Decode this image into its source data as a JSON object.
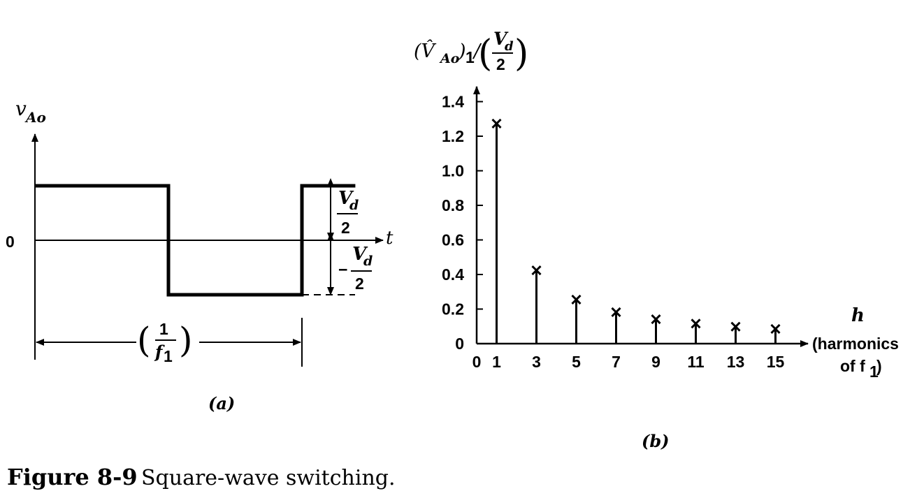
{
  "figure": {
    "number_label": "Figure 8-9",
    "caption": "Square-wave switching."
  },
  "panel_a": {
    "label": "(a)",
    "y_axis_label": "v",
    "y_axis_subscript": "Ao",
    "x_axis_label": "t",
    "zero_label": "0",
    "upper_level_num": "V",
    "upper_level_num_sub": "d",
    "upper_level_den": "2",
    "lower_level_sign": "−",
    "lower_level_num": "V",
    "lower_level_num_sub": "d",
    "lower_level_den": "2",
    "period_open": "(",
    "period_close": ")",
    "period_num": "1",
    "period_den": "f",
    "period_den_sub": "1"
  },
  "panel_b": {
    "label": "(b)",
    "y_axis_label_lhs": "(V̂",
    "y_axis_label_lhs_sub": "Ao",
    "y_axis_label_mid": ")",
    "y_axis_label_mid_sub": "1",
    "y_axis_label_div": "/",
    "y_axis_label_rhs_open": "(",
    "y_axis_label_rhs_num": "V",
    "y_axis_label_rhs_num_sub": "d",
    "y_axis_label_rhs_den": "2",
    "y_axis_label_rhs_close": ")",
    "x_axis_label_h": "h",
    "x_axis_label_line1": "(harmonics",
    "x_axis_label_line2": "of f",
    "x_axis_label_line2_sub": "1",
    "x_axis_label_close": ")"
  },
  "chart_data": [
    {
      "type": "line",
      "panel": "a",
      "x": [
        0,
        0.5,
        0.5,
        1.0,
        1.0,
        1.2
      ],
      "y": [
        1,
        1,
        -1,
        -1,
        1,
        1
      ],
      "xlabel": "t",
      "ylabel": "vAo",
      "grid": false,
      "color": "#000000"
    },
    {
      "type": "scatter",
      "panel": "b",
      "x": [
        1,
        3,
        5,
        7,
        9,
        11,
        13,
        15
      ],
      "y": [
        1.273,
        0.424,
        0.255,
        0.182,
        0.141,
        0.116,
        0.098,
        0.085
      ],
      "x_ticks": [
        "0",
        "1",
        "3",
        "5",
        "7",
        "9",
        "11",
        "13",
        "15"
      ],
      "y_ticks": [
        "0",
        "0.2",
        "0.4",
        "0.6",
        "0.8",
        "1.0",
        "1.2",
        "1.4"
      ],
      "xlim": [
        0,
        17
      ],
      "ylim": [
        0,
        1.4
      ],
      "marker": "x",
      "stems": true,
      "grid": false,
      "color": "#000000"
    }
  ]
}
